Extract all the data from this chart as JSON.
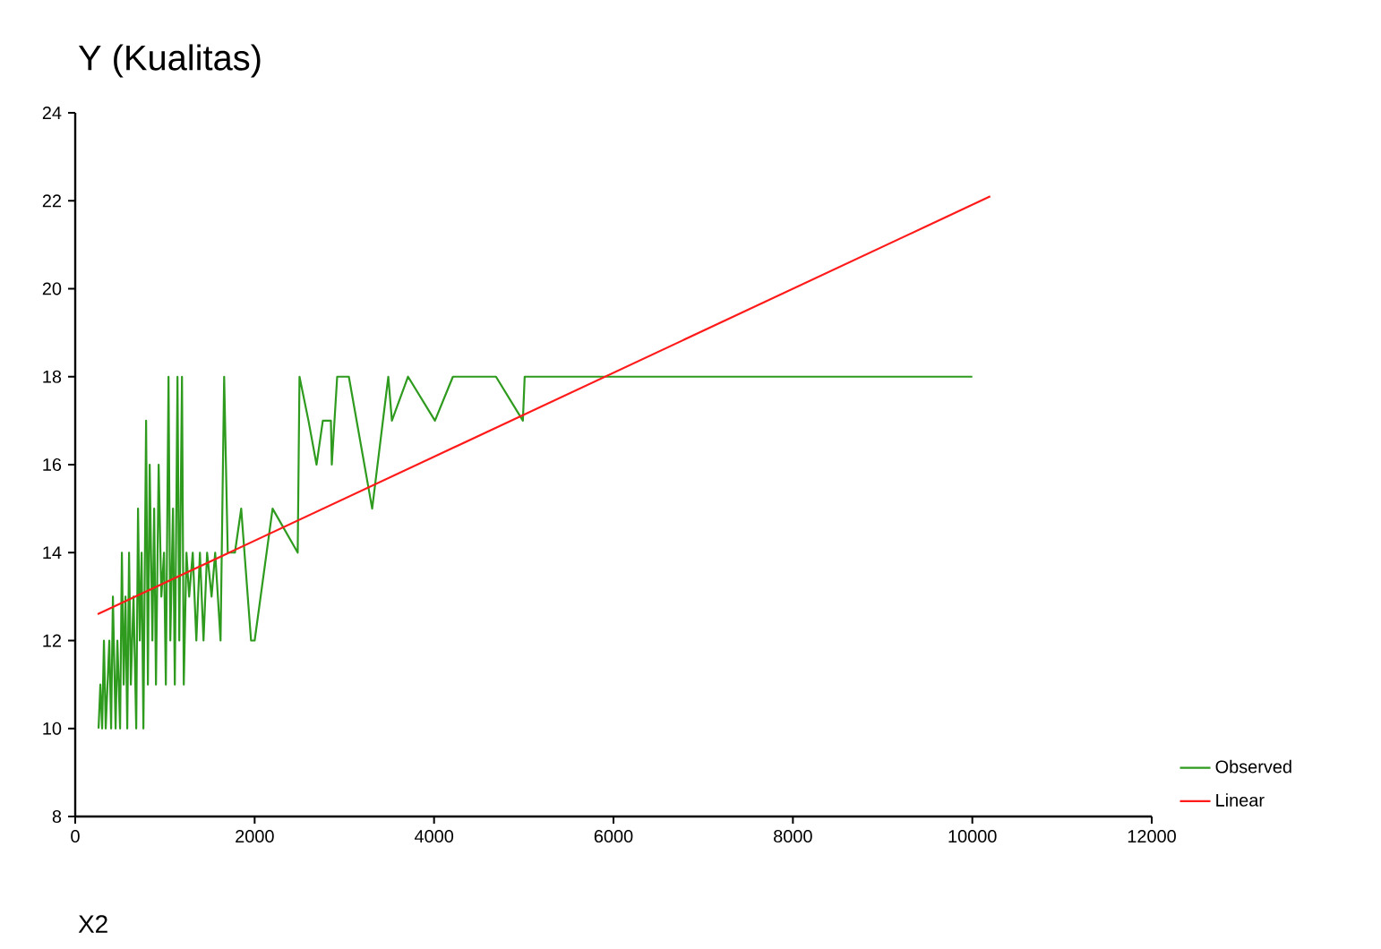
{
  "chart_data": {
    "type": "line",
    "title": "Y (Kualitas)",
    "xlabel": "X2",
    "xlim": [
      0,
      12000
    ],
    "xticks": [
      0,
      2000,
      4000,
      6000,
      8000,
      10000,
      12000
    ],
    "ylim": [
      8,
      24
    ],
    "yticks": [
      8,
      10,
      12,
      14,
      16,
      18,
      20,
      22,
      24
    ],
    "grid": false,
    "legend": "bottom right",
    "series": [
      {
        "name": "Observed",
        "color": "#2e9a1e",
        "x": [
          260,
          280,
          300,
          320,
          340,
          380,
          400,
          420,
          450,
          470,
          500,
          520,
          540,
          560,
          580,
          600,
          620,
          650,
          680,
          700,
          720,
          740,
          760,
          790,
          810,
          830,
          860,
          880,
          900,
          930,
          960,
          990,
          1010,
          1040,
          1060,
          1090,
          1110,
          1140,
          1160,
          1190,
          1210,
          1240,
          1270,
          1310,
          1350,
          1390,
          1430,
          1470,
          1520,
          1560,
          1620,
          1660,
          1700,
          1780,
          1850,
          1960,
          2000,
          2200,
          2480,
          2500,
          2600,
          2690,
          2760,
          2850,
          2860,
          2920,
          3050,
          3310,
          3490,
          3530,
          3710,
          4010,
          4210,
          4690,
          4990,
          5010,
          10000
        ],
        "values": [
          10,
          11,
          10,
          12,
          10,
          12,
          10,
          13,
          10,
          12,
          10,
          14,
          11,
          13,
          10,
          14,
          11,
          13,
          10,
          15,
          12,
          14,
          10,
          17,
          11,
          16,
          12,
          15,
          11,
          16,
          13,
          14,
          11,
          18,
          12,
          15,
          11,
          18,
          12,
          18,
          11,
          14,
          13,
          14,
          12,
          14,
          12,
          14,
          13,
          14,
          12,
          18,
          14,
          14,
          15,
          12,
          12,
          15,
          14,
          18,
          17,
          16,
          17,
          17,
          16,
          18,
          18,
          15,
          18,
          17,
          18,
          17,
          18,
          18,
          17,
          18,
          18
        ]
      },
      {
        "name": "Linear",
        "color": "#ff1a1a",
        "x": [
          250,
          10200
        ],
        "values": [
          12.6,
          22.1
        ]
      }
    ]
  }
}
